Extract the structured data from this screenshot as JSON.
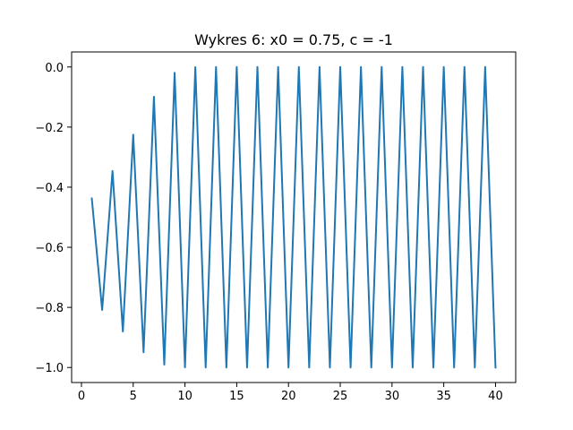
{
  "chart_data": {
    "type": "line",
    "title": "Wykres 6:  x0 = 0.75, c = -1",
    "xlabel": "",
    "ylabel": "",
    "xlim": [
      -0.95,
      41.95
    ],
    "ylim": [
      -1.05,
      0.05
    ],
    "xticks": [
      0,
      5,
      10,
      15,
      20,
      25,
      30,
      35,
      40
    ],
    "yticks": [
      0.0,
      -0.2,
      -0.4,
      -0.6,
      -0.8,
      -1.0
    ],
    "xtick_labels": [
      "0",
      "5",
      "10",
      "15",
      "20",
      "25",
      "30",
      "35",
      "40"
    ],
    "ytick_labels": [
      "0.0",
      "−0.2",
      "−0.4",
      "−0.6",
      "−0.8",
      "−1.0"
    ],
    "grid": false,
    "series": [
      {
        "color": "#1f77b4",
        "x": [
          1,
          2,
          3,
          4,
          5,
          6,
          7,
          8,
          9,
          10,
          11,
          12,
          13,
          14,
          15,
          16,
          17,
          18,
          19,
          20,
          21,
          22,
          23,
          24,
          25,
          26,
          27,
          28,
          29,
          30,
          31,
          32,
          33,
          34,
          35,
          36,
          37,
          38,
          39,
          40
        ],
        "y": [
          -0.4375,
          -0.8086,
          -0.3462,
          -0.8802,
          -0.2253,
          -0.9492,
          -0.0991,
          -0.9902,
          -0.0195,
          -0.9996,
          -0.0008,
          -1.0,
          0.0,
          -1.0,
          0.0,
          -1.0,
          0.0,
          -1.0,
          0.0,
          -1.0,
          0.0,
          -1.0,
          0.0,
          -1.0,
          0.0,
          -1.0,
          0.0,
          -1.0,
          0.0,
          -1.0,
          0.0,
          -1.0,
          0.0,
          -1.0,
          0.0,
          -1.0,
          0.0,
          -1.0,
          0.0,
          -1.0
        ]
      }
    ]
  }
}
